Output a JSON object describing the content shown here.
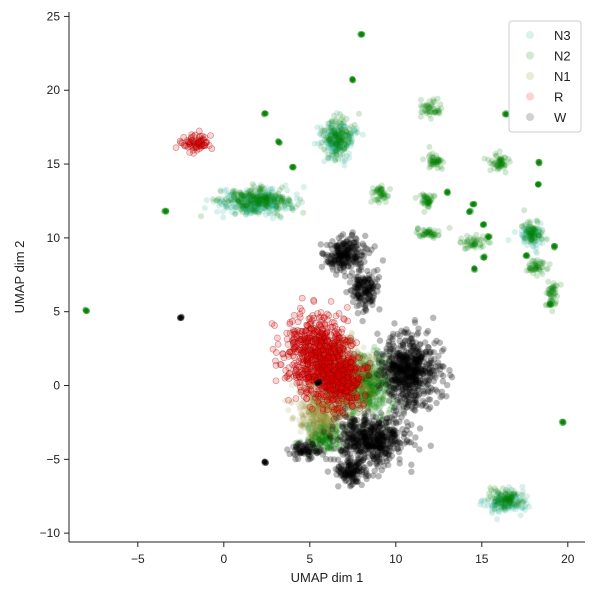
{
  "chart_data": {
    "type": "scatter",
    "title": "",
    "xlabel": "UMAP dim 1",
    "ylabel": "UMAP dim 2",
    "xlim": [
      -9,
      21
    ],
    "ylim": [
      -10.6,
      25.3
    ],
    "xticks": [
      -5,
      0,
      5,
      10,
      15,
      20
    ],
    "yticks": [
      -10,
      -5,
      0,
      5,
      10,
      15,
      20,
      25
    ],
    "xtick_labels": [
      "−5",
      "0",
      "5",
      "10",
      "15",
      "20"
    ],
    "ytick_labels": [
      "−10",
      "−5",
      "0",
      "5",
      "10",
      "15",
      "20",
      "25"
    ],
    "grid": false,
    "legend_position": "top-right",
    "series": [
      {
        "name": "N3",
        "color": "#2ab09a",
        "clusters": [
          {
            "cx": 1.8,
            "cy": 12.4,
            "rx": 2.2,
            "ry": 0.9
          },
          {
            "cx": 6.6,
            "cy": 16.6,
            "rx": 1.0,
            "ry": 1.3
          },
          {
            "cx": 16.4,
            "cy": -7.9,
            "rx": 1.2,
            "ry": 0.8
          },
          {
            "cx": 17.9,
            "cy": 10.1,
            "rx": 0.7,
            "ry": 0.9
          }
        ]
      },
      {
        "name": "N2",
        "color": "#008000",
        "clusters": [
          {
            "cx": 1.8,
            "cy": 12.5,
            "rx": 2.0,
            "ry": 0.8
          },
          {
            "cx": 6.6,
            "cy": 16.8,
            "rx": 0.8,
            "ry": 1.2
          },
          {
            "cx": 12.0,
            "cy": 18.8,
            "rx": 0.6,
            "ry": 0.6
          },
          {
            "cx": 12.2,
            "cy": 15.2,
            "rx": 0.6,
            "ry": 0.6
          },
          {
            "cx": 16.0,
            "cy": 15.1,
            "rx": 0.6,
            "ry": 0.7
          },
          {
            "cx": 9.1,
            "cy": 13.0,
            "rx": 0.4,
            "ry": 0.5
          },
          {
            "cx": 11.8,
            "cy": 12.5,
            "rx": 0.5,
            "ry": 0.5
          },
          {
            "cx": 11.9,
            "cy": 10.3,
            "rx": 0.8,
            "ry": 0.3
          },
          {
            "cx": 14.6,
            "cy": 9.7,
            "rx": 0.7,
            "ry": 0.4
          },
          {
            "cx": 17.9,
            "cy": 10.3,
            "rx": 0.6,
            "ry": 0.8
          },
          {
            "cx": 18.2,
            "cy": 8.0,
            "rx": 0.6,
            "ry": 0.5
          },
          {
            "cx": 19.1,
            "cy": 6.2,
            "rx": 0.4,
            "ry": 0.9
          },
          {
            "cx": 16.4,
            "cy": -7.7,
            "rx": 1.0,
            "ry": 0.7
          },
          {
            "cx": 8.3,
            "cy": 0.0,
            "rx": 1.8,
            "ry": 2.2
          },
          {
            "cx": 5.8,
            "cy": -3.5,
            "rx": 1.2,
            "ry": 1.2
          }
        ],
        "points": [
          [
            8.0,
            23.8
          ],
          [
            7.5,
            20.7
          ],
          [
            2.4,
            18.4
          ],
          [
            16.4,
            18.4
          ],
          [
            3.2,
            16.5
          ],
          [
            4.0,
            14.8
          ],
          [
            -3.4,
            11.8
          ],
          [
            -8.0,
            5.1
          ],
          [
            13.0,
            13.1
          ],
          [
            14.5,
            12.3
          ],
          [
            14.3,
            11.8
          ],
          [
            15.1,
            10.9
          ],
          [
            15.4,
            10.1
          ],
          [
            14.6,
            7.9
          ],
          [
            15.1,
            8.7
          ],
          [
            18.3,
            15.1
          ],
          [
            18.3,
            13.6
          ],
          [
            19.7,
            -2.5
          ],
          [
            19.2,
            9.4
          ],
          [
            19.0,
            5.5
          ],
          [
            17.6,
            8.8
          ]
        ]
      },
      {
        "name": "N1",
        "color": "#8f8a20",
        "clusters": [
          {
            "cx": 6.8,
            "cy": 0.5,
            "rx": 2.0,
            "ry": 2.5
          },
          {
            "cx": 5.6,
            "cy": -2.0,
            "rx": 1.4,
            "ry": 1.5
          }
        ]
      },
      {
        "name": "R",
        "color": "#ff0000",
        "clusters": [
          {
            "cx": -1.6,
            "cy": 16.4,
            "rx": 0.9,
            "ry": 0.6
          },
          {
            "cx": 5.5,
            "cy": 2.0,
            "rx": 1.9,
            "ry": 2.8
          },
          {
            "cx": 6.8,
            "cy": 0.4,
            "rx": 1.3,
            "ry": 2.0
          }
        ]
      },
      {
        "name": "W",
        "color": "#000000",
        "clusters": [
          {
            "cx": 7.0,
            "cy": 8.8,
            "rx": 1.2,
            "ry": 1.3
          },
          {
            "cx": 8.2,
            "cy": 6.4,
            "rx": 0.8,
            "ry": 1.3
          },
          {
            "cx": 10.8,
            "cy": 1.0,
            "rx": 1.7,
            "ry": 2.6
          },
          {
            "cx": 8.6,
            "cy": -3.6,
            "rx": 2.1,
            "ry": 1.7
          },
          {
            "cx": 7.4,
            "cy": -5.8,
            "rx": 1.0,
            "ry": 0.9
          },
          {
            "cx": 4.8,
            "cy": -4.4,
            "rx": 0.9,
            "ry": 0.6
          }
        ],
        "points": [
          [
            -2.5,
            4.6
          ],
          [
            2.4,
            -5.2
          ],
          [
            5.5,
            0.2
          ]
        ]
      }
    ]
  }
}
